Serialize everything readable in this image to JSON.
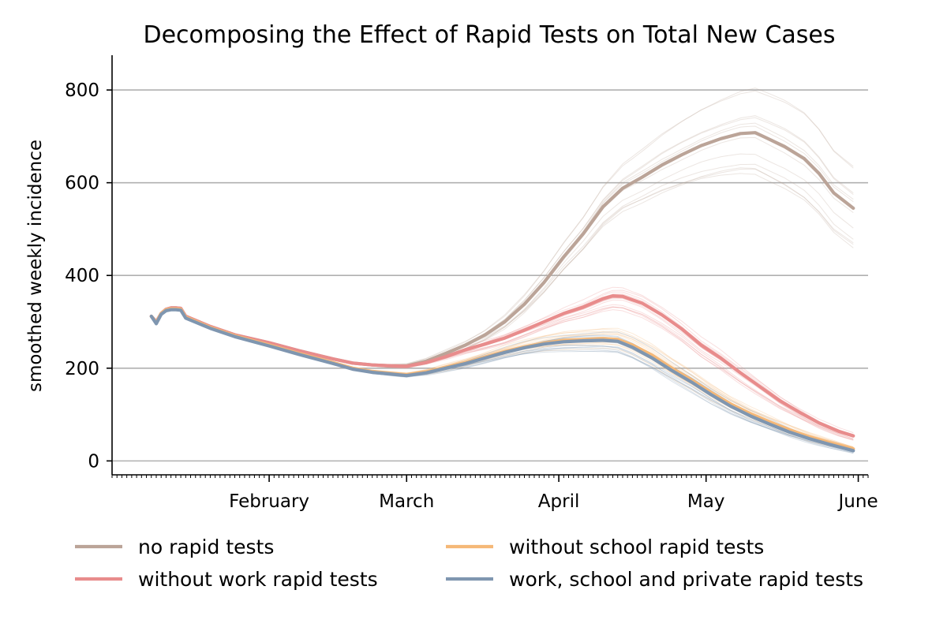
{
  "chart_data": {
    "type": "line",
    "title": "Decomposing the Effect of Rapid Tests on Total New Cases",
    "xlabel": "",
    "ylabel": "smoothed weekly incidence",
    "x_start": "2021-01-08",
    "x_end": "2021-05-31",
    "xlim": [
      "2020-12-31",
      "2021-06-03"
    ],
    "ylim": [
      -30,
      875
    ],
    "yticks": [
      0,
      200,
      400,
      600,
      800
    ],
    "xticks": [
      {
        "date": "2021-02-01",
        "label": "February"
      },
      {
        "date": "2021-03-01",
        "label": "March"
      },
      {
        "date": "2021-04-01",
        "label": "April"
      },
      {
        "date": "2021-05-01",
        "label": "May"
      },
      {
        "date": "2021-06-01",
        "label": "June"
      }
    ],
    "grid": {
      "y": true,
      "x": false
    },
    "legend_position": "bottom",
    "series": [
      {
        "name": "no rapid tests",
        "color": "#bba498",
        "points": [
          [
            "2021-01-08",
            312
          ],
          [
            "2021-01-09",
            300
          ],
          [
            "2021-01-10",
            318
          ],
          [
            "2021-01-11",
            327
          ],
          [
            "2021-01-12",
            330
          ],
          [
            "2021-01-13",
            330
          ],
          [
            "2021-01-14",
            329
          ],
          [
            "2021-01-15",
            312
          ],
          [
            "2021-01-20",
            290
          ],
          [
            "2021-01-25",
            272
          ],
          [
            "2021-02-01",
            255
          ],
          [
            "2021-02-07",
            238
          ],
          [
            "2021-02-14",
            220
          ],
          [
            "2021-02-18",
            211
          ],
          [
            "2021-02-22",
            207
          ],
          [
            "2021-02-26",
            205
          ],
          [
            "2021-03-01",
            205
          ],
          [
            "2021-03-05",
            215
          ],
          [
            "2021-03-09",
            232
          ],
          [
            "2021-03-13",
            250
          ],
          [
            "2021-03-17",
            272
          ],
          [
            "2021-03-21",
            300
          ],
          [
            "2021-03-25",
            338
          ],
          [
            "2021-03-29",
            385
          ],
          [
            "2021-04-02",
            440
          ],
          [
            "2021-04-06",
            490
          ],
          [
            "2021-04-10",
            548
          ],
          [
            "2021-04-14",
            588
          ],
          [
            "2021-04-18",
            612
          ],
          [
            "2021-04-22",
            638
          ],
          [
            "2021-04-26",
            660
          ],
          [
            "2021-04-30",
            680
          ],
          [
            "2021-05-04",
            695
          ],
          [
            "2021-05-08",
            706
          ],
          [
            "2021-05-11",
            708
          ],
          [
            "2021-05-13",
            698
          ],
          [
            "2021-05-17",
            678
          ],
          [
            "2021-05-21",
            652
          ],
          [
            "2021-05-24",
            620
          ],
          [
            "2021-05-27",
            578
          ],
          [
            "2021-05-31",
            545
          ]
        ]
      },
      {
        "name": "without work rapid tests",
        "color": "#e88c8c",
        "points": [
          [
            "2021-01-08",
            312
          ],
          [
            "2021-01-09",
            300
          ],
          [
            "2021-01-10",
            318
          ],
          [
            "2021-01-11",
            327
          ],
          [
            "2021-01-12",
            330
          ],
          [
            "2021-01-13",
            330
          ],
          [
            "2021-01-14",
            329
          ],
          [
            "2021-01-15",
            312
          ],
          [
            "2021-01-20",
            290
          ],
          [
            "2021-01-25",
            272
          ],
          [
            "2021-02-01",
            255
          ],
          [
            "2021-02-07",
            238
          ],
          [
            "2021-02-14",
            220
          ],
          [
            "2021-02-18",
            211
          ],
          [
            "2021-02-22",
            207
          ],
          [
            "2021-02-26",
            205
          ],
          [
            "2021-03-01",
            204
          ],
          [
            "2021-03-05",
            212
          ],
          [
            "2021-03-09",
            225
          ],
          [
            "2021-03-13",
            240
          ],
          [
            "2021-03-17",
            252
          ],
          [
            "2021-03-21",
            265
          ],
          [
            "2021-03-25",
            282
          ],
          [
            "2021-03-29",
            300
          ],
          [
            "2021-04-02",
            318
          ],
          [
            "2021-04-06",
            332
          ],
          [
            "2021-04-10",
            350
          ],
          [
            "2021-04-12",
            356
          ],
          [
            "2021-04-14",
            355
          ],
          [
            "2021-04-18",
            340
          ],
          [
            "2021-04-22",
            315
          ],
          [
            "2021-04-26",
            285
          ],
          [
            "2021-04-30",
            250
          ],
          [
            "2021-05-04",
            222
          ],
          [
            "2021-05-08",
            190
          ],
          [
            "2021-05-12",
            160
          ],
          [
            "2021-05-16",
            130
          ],
          [
            "2021-05-20",
            105
          ],
          [
            "2021-05-24",
            82
          ],
          [
            "2021-05-28",
            64
          ],
          [
            "2021-05-31",
            54
          ]
        ]
      },
      {
        "name": "without school rapid tests",
        "color": "#f5b878",
        "points": [
          [
            "2021-01-08",
            312
          ],
          [
            "2021-01-09",
            298
          ],
          [
            "2021-01-10",
            318
          ],
          [
            "2021-01-11",
            326
          ],
          [
            "2021-01-12",
            328
          ],
          [
            "2021-01-13",
            328
          ],
          [
            "2021-01-14",
            327
          ],
          [
            "2021-01-15",
            310
          ],
          [
            "2021-01-20",
            288
          ],
          [
            "2021-01-25",
            270
          ],
          [
            "2021-02-01",
            250
          ],
          [
            "2021-02-07",
            232
          ],
          [
            "2021-02-14",
            212
          ],
          [
            "2021-02-18",
            200
          ],
          [
            "2021-02-22",
            193
          ],
          [
            "2021-02-26",
            189
          ],
          [
            "2021-03-01",
            186
          ],
          [
            "2021-03-05",
            192
          ],
          [
            "2021-03-09",
            202
          ],
          [
            "2021-03-13",
            212
          ],
          [
            "2021-03-17",
            224
          ],
          [
            "2021-03-21",
            236
          ],
          [
            "2021-03-25",
            246
          ],
          [
            "2021-03-29",
            254
          ],
          [
            "2021-04-02",
            260
          ],
          [
            "2021-04-06",
            262
          ],
          [
            "2021-04-10",
            264
          ],
          [
            "2021-04-13",
            262
          ],
          [
            "2021-04-16",
            250
          ],
          [
            "2021-04-20",
            228
          ],
          [
            "2021-04-24",
            200
          ],
          [
            "2021-04-28",
            175
          ],
          [
            "2021-05-02",
            148
          ],
          [
            "2021-05-06",
            123
          ],
          [
            "2021-05-10",
            102
          ],
          [
            "2021-05-14",
            84
          ],
          [
            "2021-05-18",
            67
          ],
          [
            "2021-05-22",
            52
          ],
          [
            "2021-05-26",
            40
          ],
          [
            "2021-05-31",
            26
          ]
        ]
      },
      {
        "name": "work, school and private rapid tests",
        "color": "#7f96b0",
        "points": [
          [
            "2021-01-08",
            312
          ],
          [
            "2021-01-09",
            296
          ],
          [
            "2021-01-10",
            316
          ],
          [
            "2021-01-11",
            324
          ],
          [
            "2021-01-12",
            326
          ],
          [
            "2021-01-13",
            326
          ],
          [
            "2021-01-14",
            325
          ],
          [
            "2021-01-15",
            308
          ],
          [
            "2021-01-20",
            286
          ],
          [
            "2021-01-25",
            268
          ],
          [
            "2021-02-01",
            248
          ],
          [
            "2021-02-07",
            230
          ],
          [
            "2021-02-14",
            210
          ],
          [
            "2021-02-18",
            198
          ],
          [
            "2021-02-22",
            191
          ],
          [
            "2021-02-26",
            187
          ],
          [
            "2021-03-01",
            184
          ],
          [
            "2021-03-05",
            190
          ],
          [
            "2021-03-09",
            200
          ],
          [
            "2021-03-13",
            210
          ],
          [
            "2021-03-17",
            222
          ],
          [
            "2021-03-21",
            234
          ],
          [
            "2021-03-25",
            244
          ],
          [
            "2021-03-29",
            252
          ],
          [
            "2021-04-02",
            257
          ],
          [
            "2021-04-06",
            259
          ],
          [
            "2021-04-10",
            260
          ],
          [
            "2021-04-13",
            258
          ],
          [
            "2021-04-16",
            245
          ],
          [
            "2021-04-20",
            222
          ],
          [
            "2021-04-24",
            195
          ],
          [
            "2021-04-28",
            170
          ],
          [
            "2021-05-02",
            143
          ],
          [
            "2021-05-06",
            118
          ],
          [
            "2021-05-10",
            97
          ],
          [
            "2021-05-14",
            79
          ],
          [
            "2021-05-18",
            62
          ],
          [
            "2021-05-22",
            48
          ],
          [
            "2021-05-26",
            36
          ],
          [
            "2021-05-31",
            22
          ]
        ]
      }
    ]
  },
  "legend": {
    "items": [
      {
        "label": "no rapid tests",
        "color": "#bba498"
      },
      {
        "label": "without school rapid tests",
        "color": "#f5b878"
      },
      {
        "label": "without work rapid tests",
        "color": "#e88c8c"
      },
      {
        "label": "work, school and private rapid tests",
        "color": "#7f96b0"
      }
    ]
  }
}
